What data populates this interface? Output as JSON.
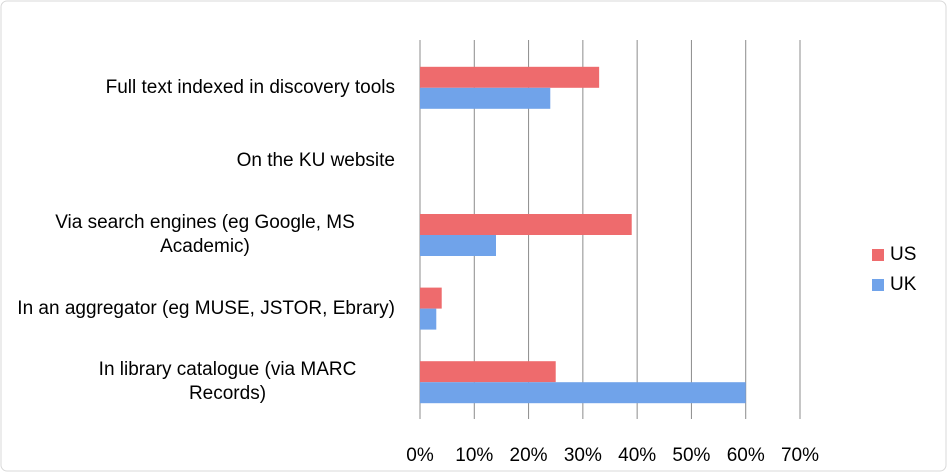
{
  "chart_data": {
    "type": "hbar",
    "categories": [
      "Full text indexed in discovery tools",
      "On the KU website",
      "Via search engines (eg Google, MS Academic)",
      "In an aggregator (eg MUSE, JSTOR, Ebrary)",
      "In library catalogue (via MARC Records)"
    ],
    "series": [
      {
        "name": "US",
        "color": "#ee6b6d",
        "values": [
          33,
          0,
          39,
          4,
          25
        ]
      },
      {
        "name": "UK",
        "color": "#70a3ea",
        "values": [
          24,
          0,
          14,
          3,
          60
        ]
      }
    ],
    "xlim": [
      0,
      70
    ],
    "xticks": [
      {
        "value": 0,
        "label": "0%"
      },
      {
        "value": 10,
        "label": "10%"
      },
      {
        "value": 20,
        "label": "20%"
      },
      {
        "value": 30,
        "label": "30%"
      },
      {
        "value": 40,
        "label": "40%"
      },
      {
        "value": 50,
        "label": "50%"
      },
      {
        "value": 60,
        "label": "60%"
      },
      {
        "value": 70,
        "label": "70%"
      }
    ],
    "grid": true,
    "legend": "right"
  }
}
